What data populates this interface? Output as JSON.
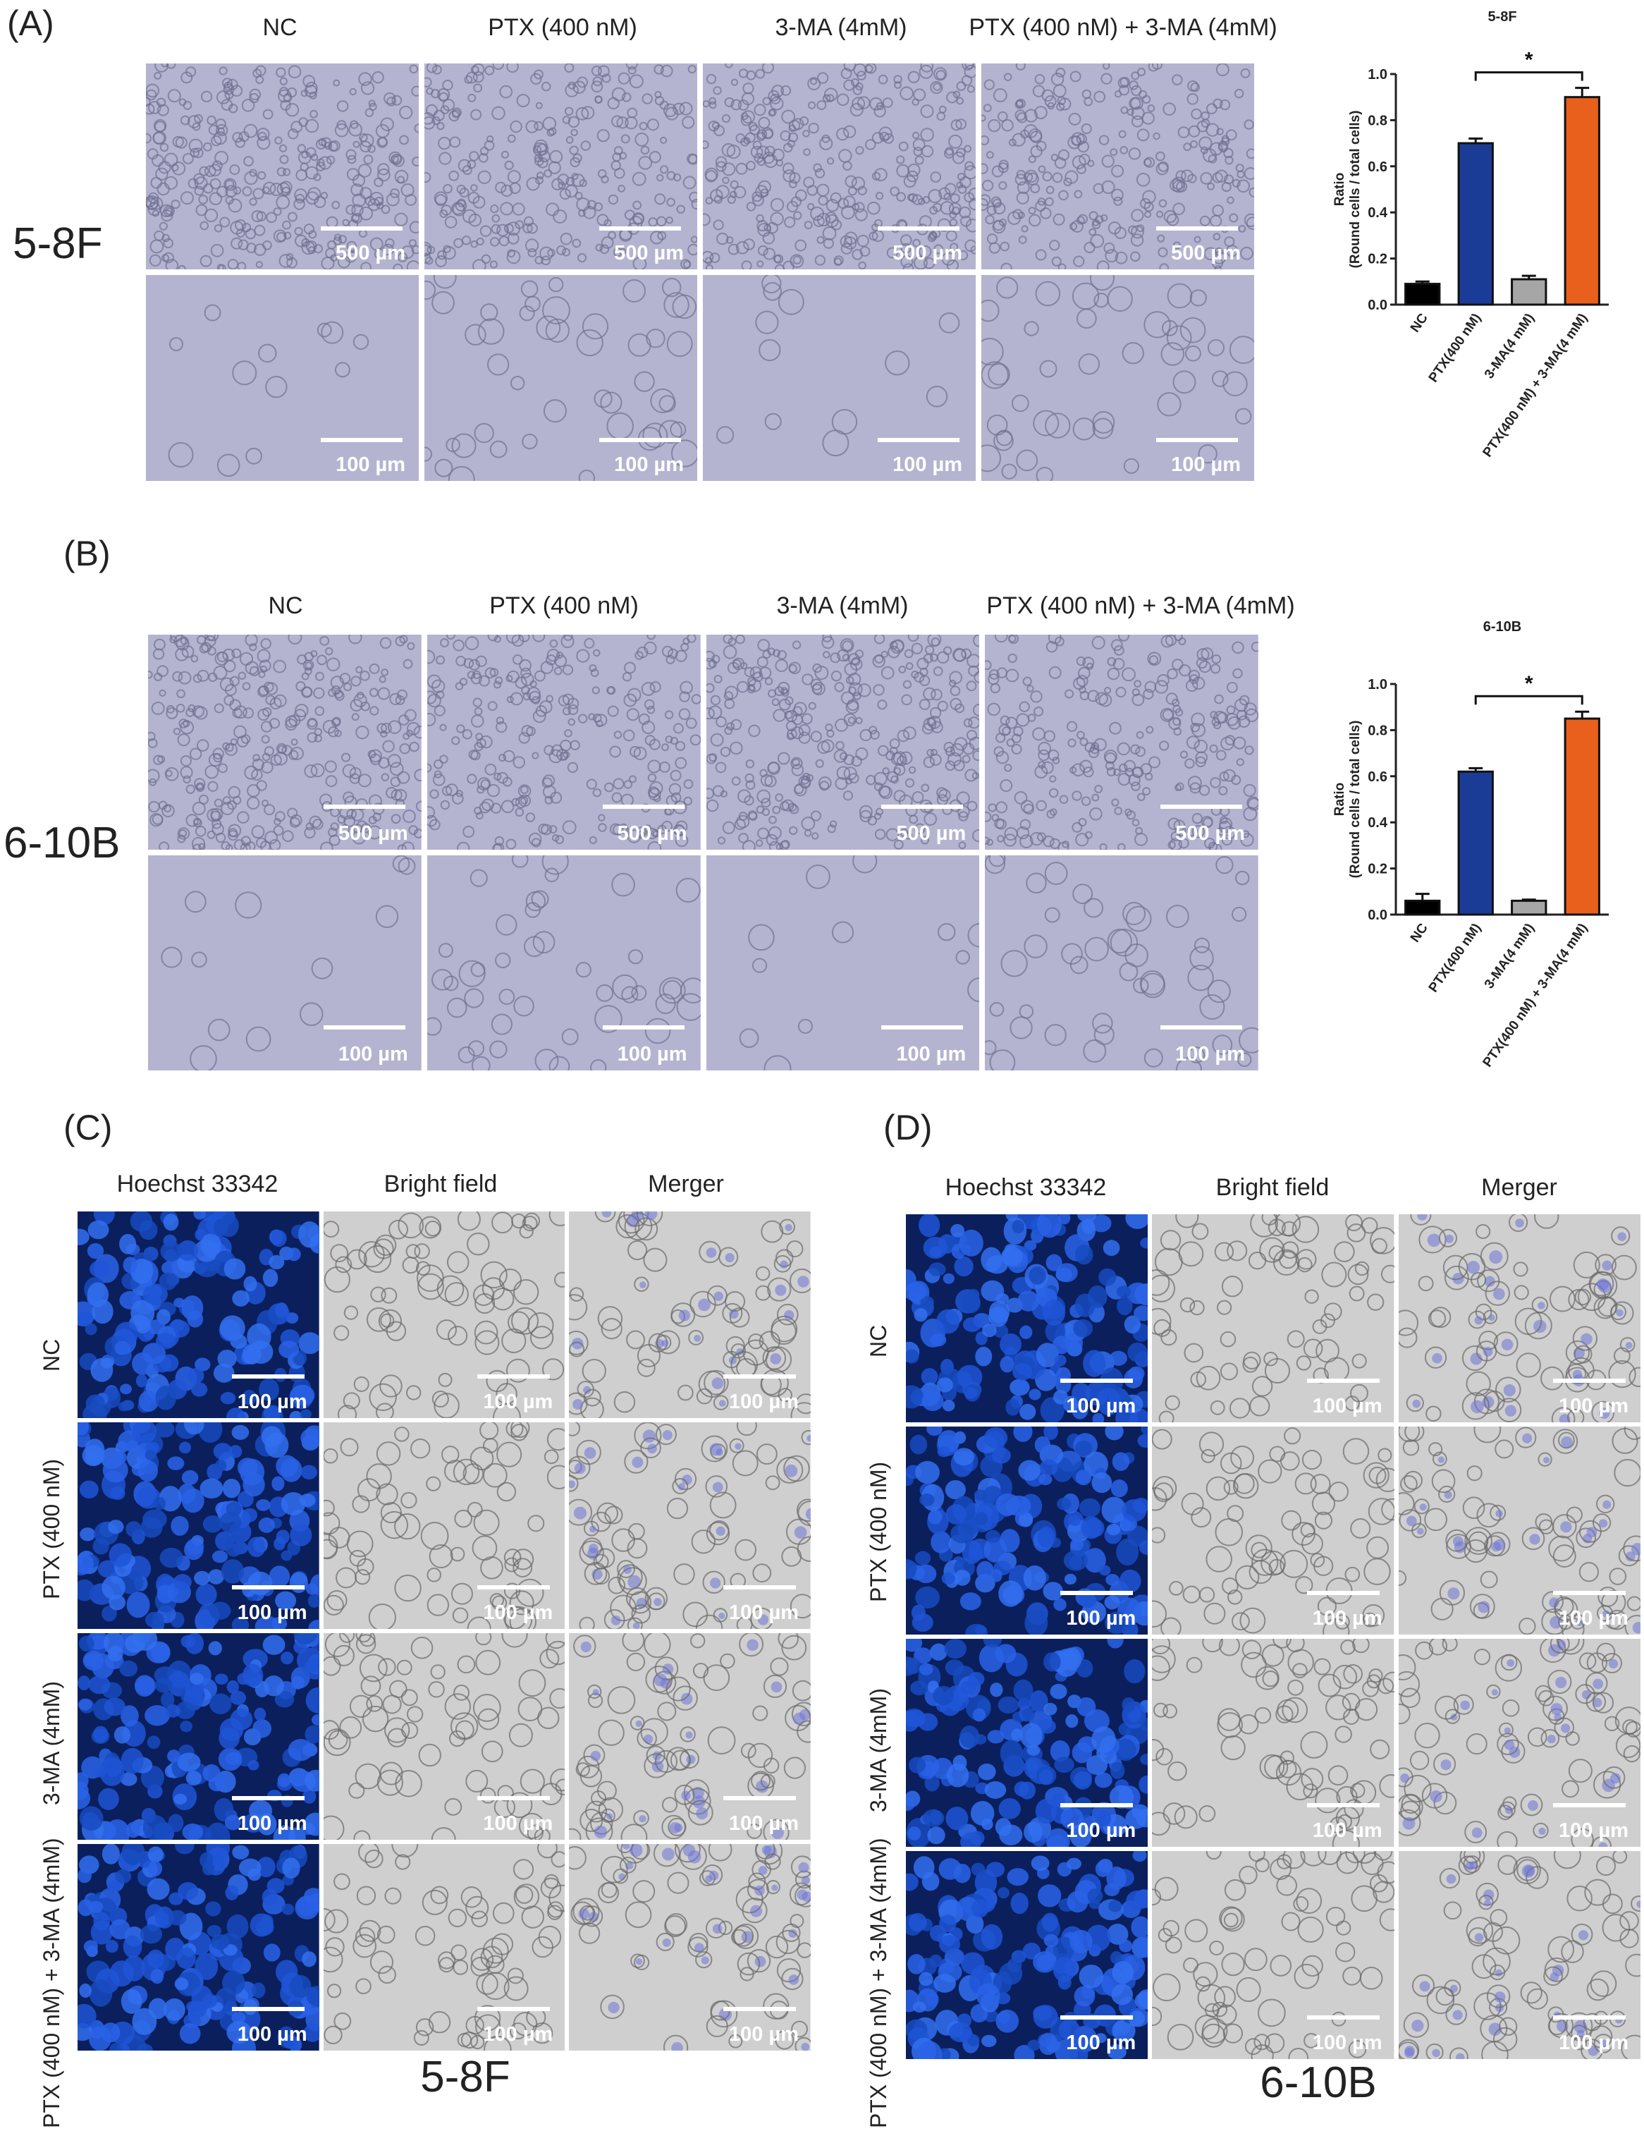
{
  "panelA": {
    "letter": "(A)",
    "cell_line": "5-8F",
    "columns": [
      "NC",
      "PTX (400 nM)",
      "3-MA (4mM)",
      "PTX (400 nM) + 3-MA (4mM)"
    ],
    "scale_top": "500 µm",
    "scale_bottom": "100 µm"
  },
  "panelB": {
    "letter": "(B)",
    "cell_line": "6-10B",
    "columns": [
      "NC",
      "PTX (400 nM)",
      "3-MA (4mM)",
      "PTX (400 nM) + 3-MA (4mM)"
    ],
    "scale_top": "500 µm",
    "scale_bottom": "100 µm"
  },
  "panelC": {
    "letter": "(C)",
    "columns": [
      "Hoechst 33342",
      "Bright field",
      "Merger"
    ],
    "rows": [
      "NC",
      "PTX (400 nM)",
      "3-MA (4mM)",
      "PTX (400 nM) + 3-MA (4mM)"
    ],
    "scale": "100 µm",
    "bottom_title": "5-8F"
  },
  "panelD": {
    "letter": "(D)",
    "columns": [
      "Hoechst 33342",
      "Bright field",
      "Merger"
    ],
    "rows": [
      "NC",
      "PTX (400 nM)",
      "3-MA (4mM)",
      "PTX (400 nM) + 3-MA (4mM)"
    ],
    "scale": "100 µm",
    "bottom_title": "6-10B"
  },
  "colors": {
    "nc": "#000000",
    "ptx": "#1a3c96",
    "ma": "#a6a6a6",
    "combo": "#e8601c",
    "hoechst": "#0b3da8",
    "brightfield_purple": "#b3b3cf",
    "brightfield_gray": "#d2d2d2"
  },
  "chart_data": [
    {
      "type": "bar",
      "title": "5-8F",
      "ylabel": "Ratio",
      "ylabel2": "(Round cells / total cells)",
      "categories": [
        "NC",
        "PTX(400 nM)",
        "3-MA(4 mM)",
        "PTX(400 nM) + 3-MA(4 mM)"
      ],
      "values": [
        0.09,
        0.7,
        0.11,
        0.9
      ],
      "errors": [
        0.01,
        0.02,
        0.015,
        0.04
      ],
      "ylim": [
        0,
        1.0
      ],
      "yticks": [
        "0.0",
        "0.2",
        "0.4",
        "0.6",
        "0.8",
        "1.0"
      ],
      "significance": {
        "between": [
          1,
          3
        ],
        "label": "*"
      }
    },
    {
      "type": "bar",
      "title": "6-10B",
      "ylabel": "Ratio",
      "ylabel2": "(Round cells / total cells)",
      "categories": [
        "NC",
        "PTX(400 nM)",
        "3-MA(4 mM)",
        "PTX(400 nM) + 3-MA(4 mM)"
      ],
      "values": [
        0.06,
        0.62,
        0.06,
        0.85
      ],
      "errors": [
        0.03,
        0.015,
        0.005,
        0.03
      ],
      "ylim": [
        0,
        1.0
      ],
      "yticks": [
        "0.0",
        "0.2",
        "0.4",
        "0.6",
        "0.8",
        "1.0"
      ],
      "significance": {
        "between": [
          1,
          3
        ],
        "label": "*"
      }
    }
  ]
}
